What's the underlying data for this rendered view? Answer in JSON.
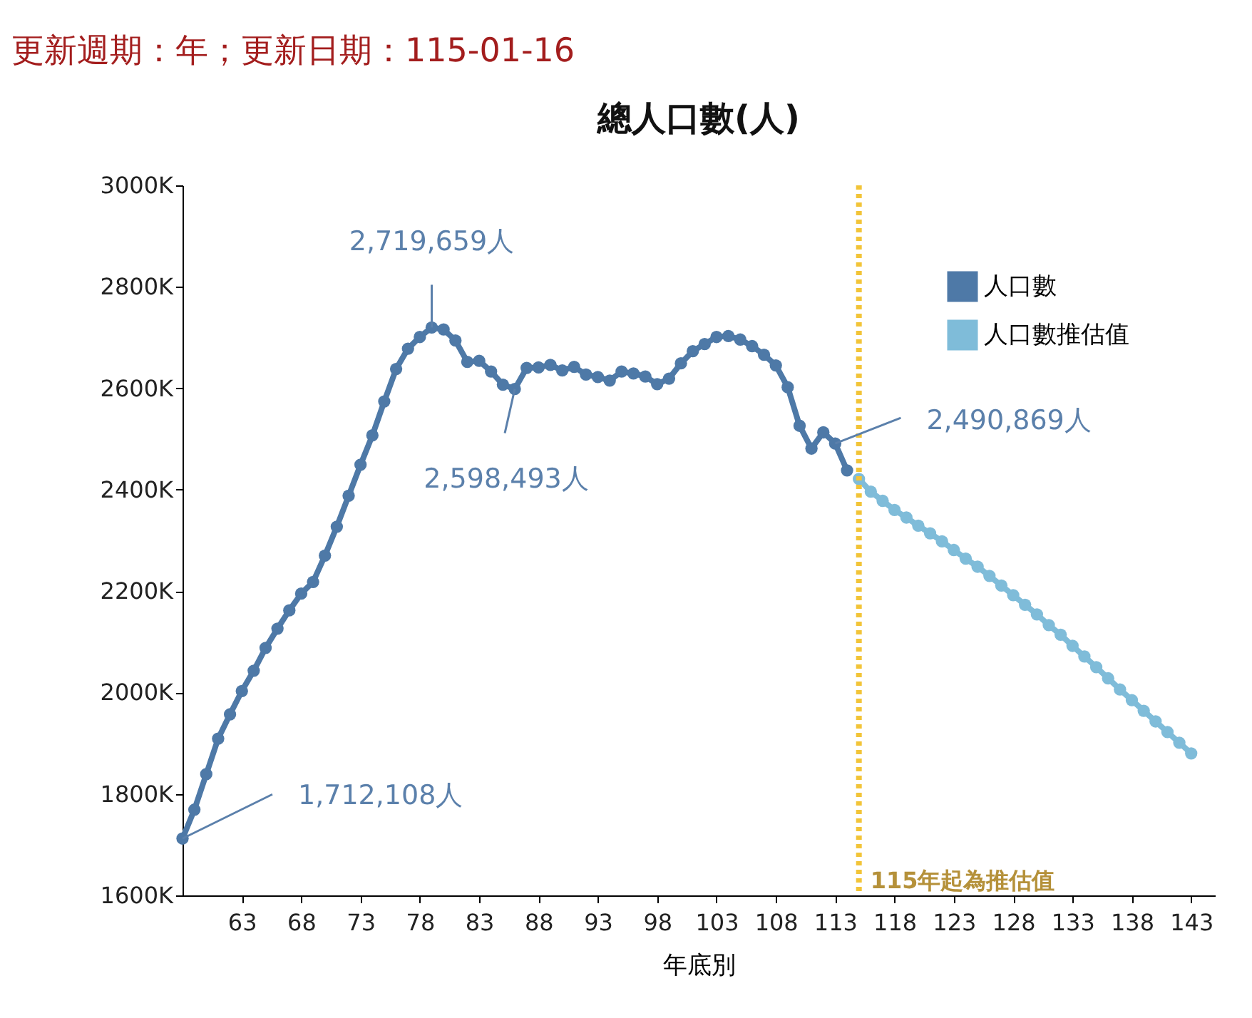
{
  "chart_data": {
    "type": "line",
    "title": "總人口數(人)",
    "xlabel": "年底別",
    "x": [
      58,
      59,
      60,
      61,
      62,
      63,
      64,
      65,
      66,
      67,
      68,
      69,
      70,
      71,
      72,
      73,
      74,
      75,
      76,
      77,
      78,
      79,
      80,
      81,
      82,
      83,
      84,
      85,
      86,
      87,
      88,
      89,
      90,
      91,
      92,
      93,
      94,
      95,
      96,
      97,
      98,
      99,
      100,
      101,
      102,
      103,
      104,
      105,
      106,
      107,
      108,
      109,
      110,
      111,
      112,
      113,
      114
    ],
    "series": [
      {
        "name": "人口數",
        "color": "#4e79a7",
        "values": [
          1712108,
          1769000,
          1839000,
          1909000,
          1957000,
          2003000,
          2043000,
          2088000,
          2126000,
          2162000,
          2195000,
          2218000,
          2270000,
          2327000,
          2388000,
          2449000,
          2507000,
          2574000,
          2638000,
          2678000,
          2701000,
          2719659,
          2716000,
          2694000,
          2652000,
          2654000,
          2633000,
          2607000,
          2598493,
          2640000,
          2641000,
          2646000,
          2635000,
          2642000,
          2627000,
          2622000,
          2615000,
          2633000,
          2629000,
          2623000,
          2608000,
          2619000,
          2649000,
          2673000,
          2687000,
          2701000,
          2703000,
          2696000,
          2683000,
          2666000,
          2645000,
          2602000,
          2526000,
          2481000,
          2513000,
          2490869,
          2438000
        ]
      },
      {
        "name": "人口數推估值",
        "color": "#7fbcd9",
        "x": [
          115,
          116,
          117,
          118,
          119,
          120,
          121,
          122,
          123,
          124,
          125,
          126,
          127,
          128,
          129,
          130,
          131,
          132,
          133,
          134,
          135,
          136,
          137,
          138,
          139,
          140,
          141,
          142,
          143
        ],
        "values": [
          2421000,
          2396000,
          2378000,
          2360000,
          2345000,
          2329000,
          2314000,
          2298000,
          2281000,
          2264000,
          2248000,
          2230000,
          2211000,
          2192000,
          2173000,
          2154000,
          2133000,
          2114000,
          2092000,
          2071000,
          2050000,
          2028000,
          2006000,
          1985000,
          1964000,
          1943000,
          1922000,
          1901000,
          1880000
        ]
      }
    ],
    "xlim": [
      58,
      145
    ],
    "xticks": [
      63,
      68,
      73,
      78,
      83,
      88,
      93,
      98,
      103,
      108,
      113,
      118,
      123,
      128,
      133,
      138,
      143
    ],
    "ylim": [
      1600000,
      3000000
    ],
    "yticks": [
      {
        "value": 1600000,
        "label": "1600K"
      },
      {
        "value": 1800000,
        "label": "1800K"
      },
      {
        "value": 2000000,
        "label": "2000K"
      },
      {
        "value": 2200000,
        "label": "2200K"
      },
      {
        "value": 2400000,
        "label": "2400K"
      },
      {
        "value": 2600000,
        "label": "2600K"
      },
      {
        "value": 2800000,
        "label": "2800K"
      },
      {
        "value": 3000000,
        "label": "3000K"
      }
    ],
    "ref_lines": [
      {
        "axis": "x",
        "value": 115,
        "label": "115年起為推估值",
        "color": "#f2c438",
        "line_style": "dotted"
      }
    ],
    "annotations": [
      {
        "text": "1,712,108人",
        "x": 58,
        "y": 1712108
      },
      {
        "text": "2,719,659人",
        "x": 79,
        "y": 2719659
      },
      {
        "text": "2,598,493人",
        "x": 86,
        "y": 2598493
      },
      {
        "text": "2,490,869人",
        "x": 113,
        "y": 2490869
      },
      "更新週期：年；更新日期：115-01-16"
    ],
    "grid": false,
    "legend": "top right",
    "marker": "circle",
    "line_style": "solid"
  }
}
